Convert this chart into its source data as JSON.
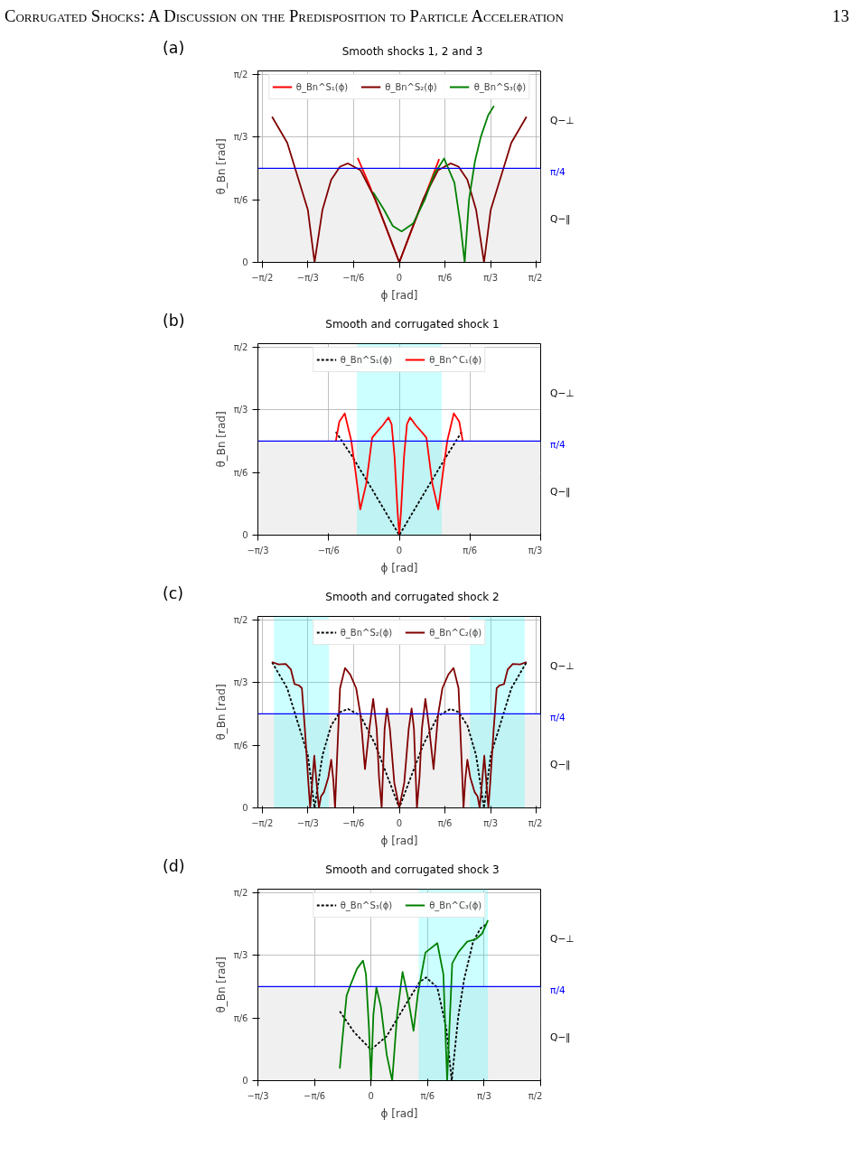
{
  "chart_data": [
    {
      "type": "line",
      "title": "Smooth shocks 1, 2 and 3",
      "xlabel": "ϕ [rad]",
      "ylabel": "θ_Bn [rad]",
      "annotations": [
        "Corrugated Shocks: A Discussion on the Predisposition to Particle Acceleration",
        "13",
        "(a)",
        "Q−⊥"
      ],
      "xlim": [
        -1.62,
        1.62
      ],
      "ylim": [
        0,
        1.6
      ],
      "xticks": [
        {
          "value": -1.5708,
          "label": "−π/2"
        },
        {
          "value": -1.0472,
          "label": "−π/3"
        },
        {
          "value": -0.5236,
          "label": "−π/6"
        },
        0,
        {
          "value": 0.5236,
          "label": "π/6"
        },
        {
          "value": 1.0472,
          "label": "π/3"
        },
        {
          "value": 1.5708,
          "label": "π/2"
        }
      ],
      "yticks": [
        0,
        {
          "value": 0.5236,
          "label": "π/6"
        },
        {
          "value": 1.0472,
          "label": "π/3"
        },
        {
          "value": 1.5708,
          "label": "π/2"
        }
      ],
      "grid": true,
      "legend": "top",
      "bands": [
        {
          "axis": "y",
          "from": 0,
          "to": 0.7854,
          "color": "#f0f0f0",
          "label": "Q−∥"
        }
      ],
      "ref_lines": [
        {
          "axis": "y",
          "value": 0.7854,
          "label": "π/4",
          "color": "#0000ff"
        }
      ],
      "series": [
        {
          "name": "θ_Bn^S₁(ϕ)",
          "color": "#ff0000",
          "x": [
            -0.477,
            -0.35,
            -0.2,
            -0.1,
            0,
            0.1,
            0.2,
            0.35,
            0.457
          ],
          "values": [
            0.872,
            0.66,
            0.38,
            0.19,
            0,
            0.19,
            0.38,
            0.66,
            0.863
          ]
        },
        {
          "name": "θ_Bn^S₂(ϕ)",
          "color": "#800000",
          "x": [
            -1.458,
            -1.284,
            -1.048,
            -0.971,
            -0.88,
            -0.78,
            -0.679,
            -0.588,
            -0.444,
            -0.276,
            -0.108,
            0,
            0.108,
            0.276,
            0.444,
            0.588,
            0.679,
            0.78,
            0.88,
            0.971,
            1.048,
            1.284,
            1.458
          ],
          "values": [
            1.217,
            1.0,
            0.44,
            0,
            0.44,
            0.69,
            0.8,
            0.827,
            0.77,
            0.53,
            0.21,
            0,
            0.21,
            0.53,
            0.77,
            0.827,
            0.8,
            0.69,
            0.44,
            0,
            0.44,
            1.0,
            1.217
          ]
        },
        {
          "name": "θ_Bn^S₃(ϕ)",
          "color": "#008000",
          "x": [
            -0.299,
            -0.175,
            -0.074,
            0.027,
            0.161,
            0.296,
            0.397,
            0.514,
            0.632,
            0.699,
            0.749,
            0.8,
            0.867,
            0.934,
            1.018,
            1.085
          ],
          "values": [
            0.586,
            0.44,
            0.304,
            0.259,
            0.327,
            0.53,
            0.732,
            0.868,
            0.665,
            0.327,
            0,
            0.53,
            0.845,
            1.048,
            1.228,
            1.307
          ]
        }
      ]
    },
    {
      "type": "line",
      "title": "Smooth and corrugated shock 1",
      "xlabel": "ϕ [rad]",
      "ylabel": "θ_Bn [rad]",
      "annotations": [
        "(b)",
        "Q−⊥"
      ],
      "xlim": [
        -1.0472,
        1.0472
      ],
      "ylim": [
        0,
        1.6
      ],
      "xticks": [
        {
          "value": -1.0472,
          "label": "−π/3"
        },
        {
          "value": -0.5236,
          "label": "−π/6"
        },
        0,
        {
          "value": 0.5236,
          "label": "π/6"
        },
        {
          "value": 1.0472,
          "label": "π/3"
        }
      ],
      "yticks": [
        0,
        {
          "value": 0.5236,
          "label": "π/6"
        },
        {
          "value": 1.0472,
          "label": "π/3"
        },
        {
          "value": 1.5708,
          "label": "π/2"
        }
      ],
      "grid": true,
      "legend": "top",
      "bands": [
        {
          "axis": "y",
          "from": 0,
          "to": 0.7854,
          "color": "#f0f0f0",
          "label": "Q−∥"
        },
        {
          "axis": "x",
          "from": -0.314,
          "to": 0.314,
          "color": "#00ffff"
        }
      ],
      "ref_lines": [
        {
          "axis": "y",
          "value": 0.7854,
          "label": "π/4",
          "color": "#0000ff"
        }
      ],
      "series": [
        {
          "name": "θ_Bn^S₁(ϕ)",
          "color": "#000000",
          "line_style": "dashed",
          "x": [
            -0.47,
            -0.35,
            -0.2,
            -0.1,
            0,
            0.1,
            0.2,
            0.35,
            0.462
          ],
          "values": [
            0.863,
            0.66,
            0.38,
            0.19,
            0,
            0.19,
            0.38,
            0.66,
            0.863
          ]
        },
        {
          "name": "θ_Bn^C₁(ϕ)",
          "color": "#ff0000",
          "line_style": "solid",
          "x": [
            -0.47,
            -0.444,
            -0.404,
            -0.356,
            -0.323,
            -0.289,
            -0.245,
            -0.201,
            -0.168,
            -0.124,
            -0.08,
            -0.057,
            -0.035,
            -0.013,
            0,
            0.013,
            0.035,
            0.057,
            0.08,
            0.124,
            0.168,
            0.201,
            0.245,
            0.289,
            0.323,
            0.356,
            0.404,
            0.444,
            0.47
          ],
          "values": [
            0.786,
            0.949,
            1.017,
            0.791,
            0.52,
            0.215,
            0.429,
            0.814,
            0.859,
            0.915,
            0.983,
            0.927,
            0.655,
            0.203,
            0,
            0.203,
            0.655,
            0.927,
            0.983,
            0.915,
            0.859,
            0.814,
            0.429,
            0.215,
            0.52,
            0.791,
            1.017,
            0.949,
            0.786
          ]
        }
      ]
    },
    {
      "type": "line",
      "title": "Smooth and corrugated shock 2",
      "xlabel": "ϕ [rad]",
      "ylabel": "θ_Bn [rad]",
      "annotations": [
        "(c)",
        "Q−⊥"
      ],
      "xlim": [
        -1.62,
        1.62
      ],
      "ylim": [
        0,
        1.6
      ],
      "xticks": [
        {
          "value": -1.5708,
          "label": "−π/2"
        },
        {
          "value": -1.0472,
          "label": "−π/3"
        },
        {
          "value": -0.5236,
          "label": "−π/6"
        },
        0,
        {
          "value": 0.5236,
          "label": "π/6"
        },
        {
          "value": 1.0472,
          "label": "π/3"
        },
        {
          "value": 1.5708,
          "label": "π/2"
        }
      ],
      "yticks": [
        0,
        {
          "value": 0.5236,
          "label": "π/6"
        },
        {
          "value": 1.0472,
          "label": "π/3"
        },
        {
          "value": 1.5708,
          "label": "π/2"
        }
      ],
      "grid": true,
      "legend": "top",
      "bands": [
        {
          "axis": "y",
          "from": 0,
          "to": 0.7854,
          "color": "#f0f0f0",
          "label": "Q−∥"
        },
        {
          "axis": "x",
          "from": -1.435,
          "to": -0.806,
          "color": "#00ffff"
        },
        {
          "axis": "x",
          "from": 0.81,
          "to": 1.438,
          "color": "#00ffff"
        }
      ],
      "ref_lines": [
        {
          "axis": "y",
          "value": 0.7854,
          "label": "π/4",
          "color": "#0000ff"
        }
      ],
      "series": [
        {
          "name": "θ_Bn^S₂(ϕ)",
          "color": "#000000",
          "line_style": "dashed",
          "x": [
            -1.458,
            -1.284,
            -1.048,
            -0.971,
            -0.88,
            -0.78,
            -0.679,
            -0.588,
            -0.444,
            -0.276,
            -0.108,
            0,
            0.108,
            0.276,
            0.444,
            0.588,
            0.679,
            0.78,
            0.88,
            0.971,
            1.048,
            1.284,
            1.458
          ],
          "values": [
            1.217,
            1.0,
            0.44,
            0,
            0.44,
            0.69,
            0.8,
            0.827,
            0.77,
            0.53,
            0.21,
            0,
            0.21,
            0.53,
            0.77,
            0.827,
            0.8,
            0.69,
            0.44,
            0,
            0.44,
            1.0,
            1.217
          ]
        },
        {
          "name": "θ_Bn^C₂(ϕ)",
          "color": "#800000",
          "line_style": "solid",
          "x": [
            -1.458,
            -1.385,
            -1.301,
            -1.243,
            -1.2,
            -1.149,
            -1.116,
            -1.082,
            -1.042,
            -1.021,
            -0.998,
            -0.974,
            -0.948,
            -0.921,
            -0.897,
            -0.864,
            -0.813,
            -0.78,
            -0.756,
            -0.736,
            -0.712,
            -0.679,
            -0.622,
            -0.561,
            -0.494,
            -0.444,
            -0.393,
            -0.343,
            -0.299,
            -0.259,
            -0.232,
            -0.202,
            -0.168,
            -0.141,
            -0.108,
            -0.057,
            0,
            0.057,
            0.108,
            0.141,
            0.168,
            0.202,
            0.232,
            0.259,
            0.299,
            0.343,
            0.393,
            0.444,
            0.494,
            0.561,
            0.622,
            0.679,
            0.712,
            0.736,
            0.756,
            0.78,
            0.813,
            0.864,
            0.897,
            0.921,
            0.948,
            0.974,
            0.998,
            1.021,
            1.042,
            1.082,
            1.116,
            1.149,
            1.2,
            1.243,
            1.301,
            1.385,
            1.458
          ],
          "values": [
            1.219,
            1.199,
            1.203,
            1.158,
            1.034,
            1.023,
            1.0,
            0.661,
            0.21,
            0,
            0.21,
            0.436,
            0.21,
            0,
            0.097,
            0.131,
            0.255,
            0.402,
            0.233,
            0,
            0.436,
            1.0,
            1.169,
            1.113,
            1.0,
            0.774,
            0.323,
            0.661,
            0.91,
            0.661,
            0.255,
            0,
            0.661,
            0.831,
            0.661,
            0.21,
            0,
            0.21,
            0.661,
            0.831,
            0.661,
            0,
            0.255,
            0.661,
            0.91,
            0.661,
            0.323,
            0.774,
            1.0,
            1.113,
            1.169,
            1.0,
            0.436,
            0,
            0.233,
            0.402,
            0.255,
            0.131,
            0.097,
            0,
            0.21,
            0.436,
            0.21,
            0,
            0.21,
            0.661,
            1.0,
            1.023,
            1.034,
            1.158,
            1.203,
            1.199,
            1.219
          ]
        }
      ]
    },
    {
      "type": "line",
      "title": "Smooth and corrugated shock 3",
      "xlabel": "ϕ [rad]",
      "ylabel": "θ_Bn [rad]",
      "annotations": [
        "(d)",
        "Q−⊥"
      ],
      "xlim": [
        -1.0472,
        1.5708
      ],
      "ylim": [
        0,
        1.6
      ],
      "xticks": [
        {
          "value": -1.0472,
          "label": "−π/3"
        },
        {
          "value": -0.5236,
          "label": "−π/6"
        },
        0,
        {
          "value": 0.5236,
          "label": "π/6"
        },
        {
          "value": 1.0472,
          "label": "π/3"
        },
        {
          "value": 1.5708,
          "label": "π/2"
        }
      ],
      "yticks": [
        0,
        {
          "value": 0.5236,
          "label": "π/6"
        },
        {
          "value": 1.0472,
          "label": "π/3"
        },
        {
          "value": 1.5708,
          "label": "π/2"
        }
      ],
      "grid": true,
      "legend": "top",
      "bands": [
        {
          "axis": "y",
          "from": 0,
          "to": 0.7854,
          "color": "#f0f0f0",
          "label": "Q−∥"
        },
        {
          "axis": "x",
          "from": 0.441,
          "to": 1.083,
          "color": "#00ffff"
        }
      ],
      "ref_lines": [
        {
          "axis": "y",
          "value": 0.7854,
          "label": "π/4",
          "color": "#0000ff"
        }
      ],
      "series": [
        {
          "name": "θ_Bn^S₃(ϕ)",
          "color": "#000000",
          "line_style": "dashed",
          "x": [
            -0.289,
            -0.157,
            0,
            0.146,
            0.311,
            0.449,
            0.51,
            0.614,
            0.697,
            0.747,
            0.807,
            0.862,
            0.945,
            1.014,
            1.069
          ],
          "values": [
            0.579,
            0.406,
            0.259,
            0.372,
            0.62,
            0.823,
            0.863,
            0.778,
            0.439,
            0,
            0.53,
            0.845,
            1.161,
            1.273,
            1.307
          ]
        },
        {
          "name": "θ_Bn^C₃(ϕ)",
          "color": "#008000",
          "line_style": "solid",
          "x": [
            -0.289,
            -0.267,
            -0.226,
            -0.185,
            -0.13,
            -0.074,
            -0.047,
            -0.019,
            0,
            0.022,
            0.05,
            0.091,
            0.146,
            0.196,
            0.242,
            0.292,
            0.339,
            0.394,
            0.435,
            0.504,
            0.614,
            0.67,
            0.705,
            0.752,
            0.807,
            0.89,
            0.972,
            1.028,
            1.083
          ],
          "values": [
            0.101,
            0.327,
            0.71,
            0.811,
            0.935,
            1.003,
            0.89,
            0.439,
            0,
            0.552,
            0.778,
            0.62,
            0.214,
            0,
            0.552,
            0.908,
            0.71,
            0.417,
            0.732,
            1.071,
            1.149,
            0.89,
            0,
            0.98,
            1.071,
            1.161,
            1.183,
            1.228,
            1.341
          ]
        }
      ]
    }
  ]
}
